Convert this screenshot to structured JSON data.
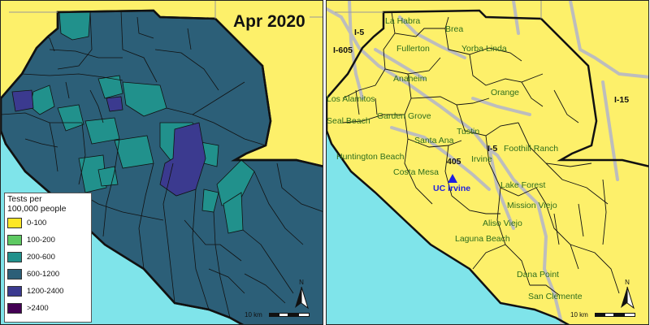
{
  "left_panel": {
    "title": "Apr 2020",
    "legend": {
      "title": "Tests per\n100,000 people",
      "items": [
        {
          "label": "0-100",
          "color": "#fde725"
        },
        {
          "label": "100-200",
          "color": "#5ec962"
        },
        {
          "label": "200-600",
          "color": "#21918c"
        },
        {
          "label": "600-1200",
          "color": "#2c5f78"
        },
        {
          "label": "1200-2400",
          "color": "#3b3a8f"
        },
        {
          "label": ">2400",
          "color": "#440154"
        }
      ]
    }
  },
  "right_panel": {
    "cities": [
      "La Habra",
      "Brea",
      "Fullerton",
      "Yorba Linda",
      "Anaheim",
      "Orange",
      "Los Alamitos",
      "Seal Beach",
      "Garden Grove",
      "Tustin",
      "Santa Ana",
      "Foothill Ranch",
      "Huntington Beach",
      "Irvine",
      "Costa Mesa",
      "Lake Forest",
      "Mission Viejo",
      "Aliso Viejo",
      "Laguna Beach",
      "Dana Point",
      "San Clemente"
    ],
    "freeways": [
      "I-5",
      "I-605",
      "I-15",
      "I-5",
      "405"
    ],
    "landmark": "UC Irvine"
  },
  "map_common": {
    "scale_label": "10 km",
    "north_label": "N"
  },
  "colors": {
    "land_background": "#fdf06a",
    "ocean": "#7fe4ea",
    "county_fill_default": "#2c5f78",
    "district_border": "#111111",
    "road": "#bdbdbd",
    "city_label": "#2f6e1d",
    "landmark": "#1f1fe0"
  }
}
